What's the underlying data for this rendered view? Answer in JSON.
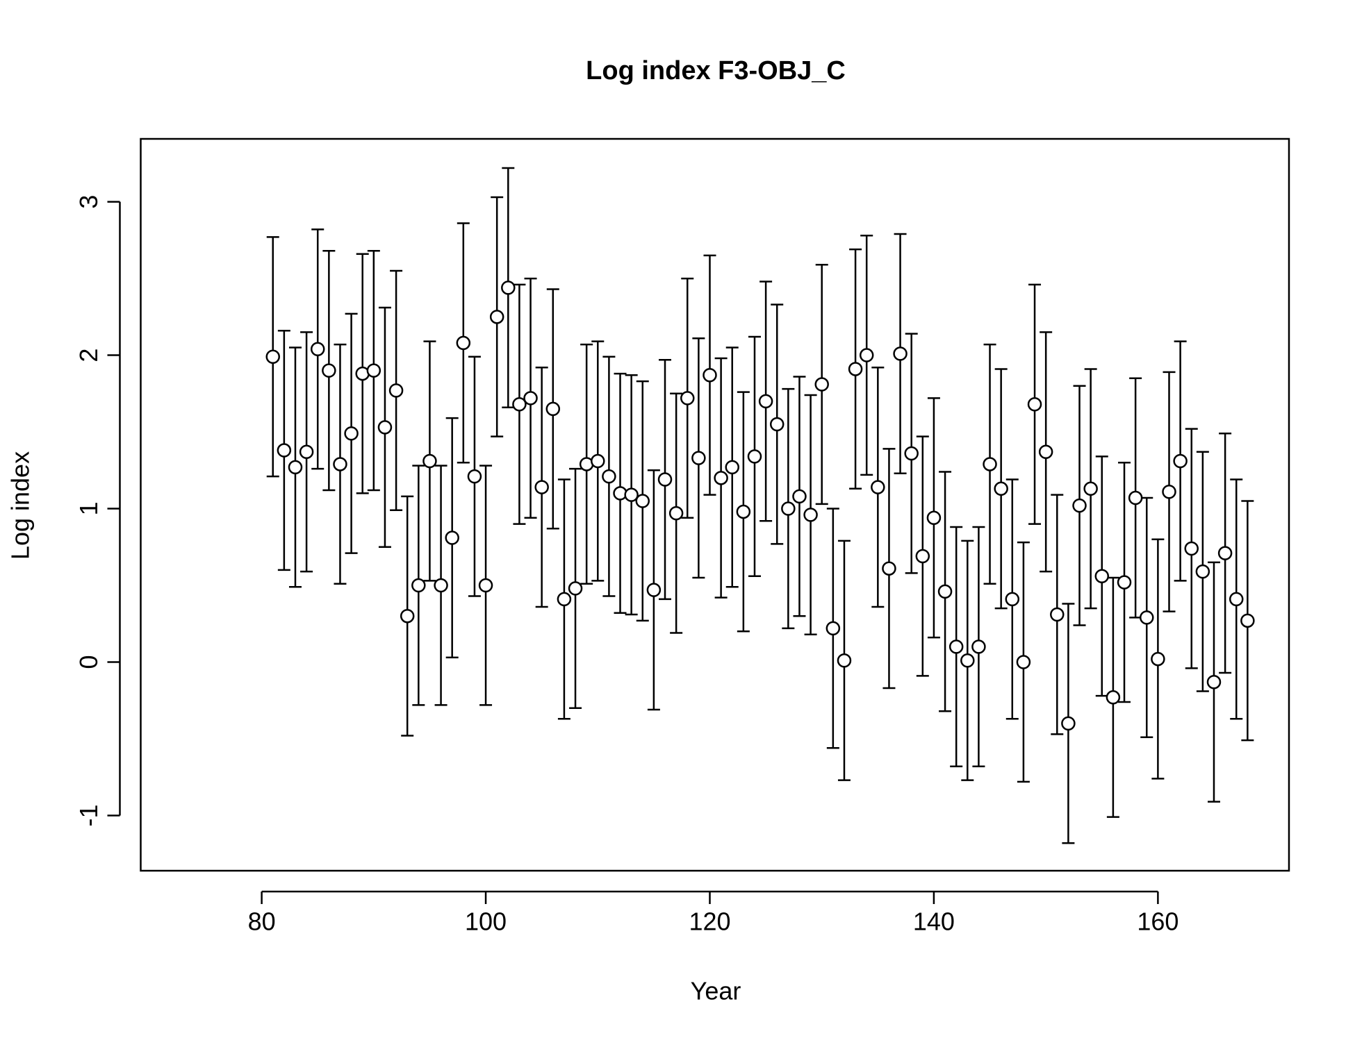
{
  "chart_data": {
    "type": "scatter",
    "title": "Log index F3-OBJ_C",
    "x_label": "Year",
    "y_label": "Log index",
    "x": [
      81,
      82,
      83,
      84,
      85,
      86,
      87,
      88,
      89,
      90,
      91,
      92,
      93,
      94,
      95,
      96,
      97,
      98,
      99,
      100,
      101,
      102,
      103,
      104,
      105,
      106,
      107,
      108,
      109,
      110,
      111,
      112,
      113,
      114,
      115,
      116,
      117,
      118,
      119,
      120,
      121,
      122,
      123,
      124,
      125,
      126,
      127,
      128,
      129,
      130,
      131,
      132,
      133,
      134,
      135,
      136,
      137,
      138,
      139,
      140,
      141,
      142,
      143,
      144,
      145,
      146,
      147,
      148,
      149,
      150,
      151,
      152,
      153,
      154,
      155,
      156,
      157,
      158,
      159,
      160,
      161,
      162,
      163,
      164,
      165,
      166,
      167,
      168
    ],
    "values": [
      1.99,
      1.38,
      1.27,
      1.37,
      2.04,
      1.9,
      1.29,
      1.49,
      1.88,
      1.9,
      1.53,
      1.77,
      0.3,
      0.5,
      1.31,
      0.5,
      0.81,
      2.08,
      1.21,
      0.5,
      2.25,
      2.44,
      1.68,
      1.72,
      1.14,
      1.65,
      0.41,
      0.48,
      1.29,
      1.31,
      1.21,
      1.1,
      1.09,
      1.05,
      0.47,
      1.19,
      0.97,
      1.72,
      1.33,
      1.87,
      1.2,
      1.27,
      0.98,
      1.34,
      1.7,
      1.55,
      1.0,
      1.08,
      0.96,
      1.81,
      0.22,
      0.01,
      1.91,
      2.0,
      1.14,
      0.61,
      2.01,
      1.36,
      0.69,
      0.94,
      0.46,
      0.1,
      0.01,
      0.1,
      1.29,
      1.13,
      0.41,
      0.0,
      1.68,
      1.37,
      0.31,
      -0.4,
      1.02,
      1.13,
      0.56,
      -0.23,
      0.52,
      1.07,
      0.29,
      0.02,
      1.11,
      1.31,
      0.74,
      0.59,
      -0.13,
      0.71,
      0.41,
      0.27
    ],
    "error": 0.78,
    "color": "#000000",
    "xlim": [
      69.2,
      171.7
    ],
    "xticks": [
      80,
      100,
      120,
      140,
      160
    ],
    "ylim": [
      -1.36,
      3.41
    ],
    "yticks": [
      -1,
      0,
      1,
      2,
      3
    ]
  }
}
